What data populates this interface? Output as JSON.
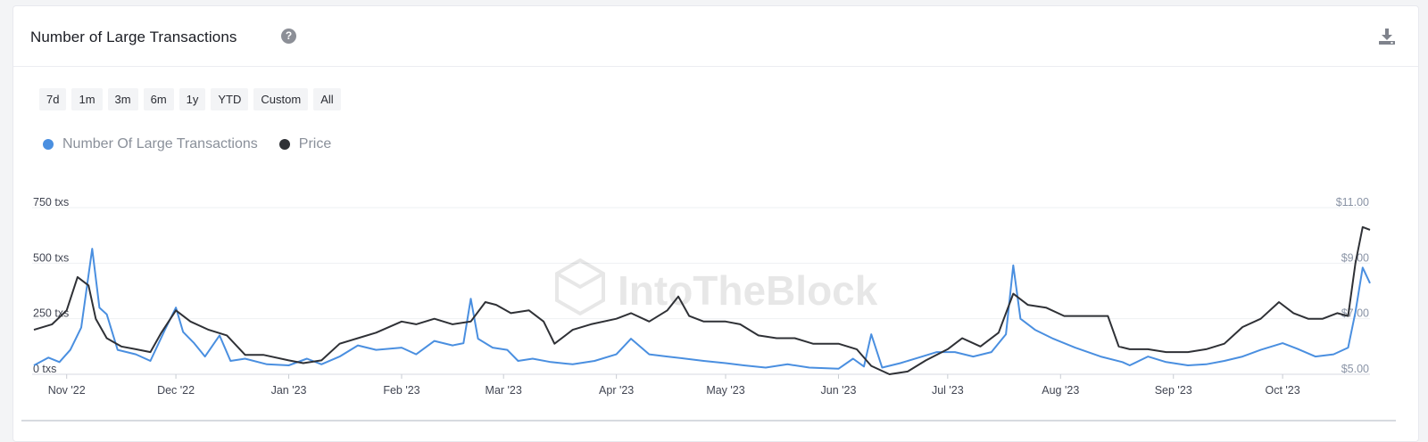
{
  "header": {
    "title": "Number of Large Transactions",
    "help_icon": "question-circle-icon",
    "download_icon": "download-icon"
  },
  "range_buttons": [
    "7d",
    "1m",
    "3m",
    "6m",
    "1y",
    "YTD",
    "Custom",
    "All"
  ],
  "watermark": "IntoTheBlock",
  "colors": {
    "transactions": "#4a8fe0",
    "price": "#2f3136",
    "grid": "#eef0f3",
    "axis_text": "#414552",
    "right_axis_text": "#8a94a6"
  },
  "chart_data": {
    "type": "line",
    "title": "Number of Large Transactions",
    "grid": true,
    "legend_position": "top-left",
    "x_range": [
      "2022-10-23",
      "2023-10-25"
    ],
    "x_ticks": [
      {
        "date": "2022-11-01",
        "label": "Nov '22"
      },
      {
        "date": "2022-12-01",
        "label": "Dec '22"
      },
      {
        "date": "2023-01-01",
        "label": "Jan '23"
      },
      {
        "date": "2023-02-01",
        "label": "Feb '23"
      },
      {
        "date": "2023-03-01",
        "label": "Mar '23"
      },
      {
        "date": "2023-04-01",
        "label": "Apr '23"
      },
      {
        "date": "2023-05-01",
        "label": "May '23"
      },
      {
        "date": "2023-06-01",
        "label": "Jun '23"
      },
      {
        "date": "2023-07-01",
        "label": "Jul '23"
      },
      {
        "date": "2023-08-01",
        "label": "Aug '23"
      },
      {
        "date": "2023-09-01",
        "label": "Sep '23"
      },
      {
        "date": "2023-10-01",
        "label": "Oct '23"
      }
    ],
    "y_left": {
      "range": [
        0,
        750
      ],
      "ticks": [
        0,
        250,
        500,
        750
      ],
      "labels": [
        "0 txs",
        "250 txs",
        "500 txs",
        "750 txs"
      ]
    },
    "y_right": {
      "range": [
        5,
        11
      ],
      "ticks": [
        5,
        7,
        9,
        11
      ],
      "labels": [
        "$5.00",
        "$7.00",
        "$9.00",
        "$11.00"
      ]
    },
    "series": [
      {
        "name": "Number Of Large Transactions",
        "axis": "left",
        "points": [
          [
            "2022-10-23",
            40
          ],
          [
            "2022-10-27",
            75
          ],
          [
            "2022-10-30",
            55
          ],
          [
            "2022-11-02",
            110
          ],
          [
            "2022-11-05",
            210
          ],
          [
            "2022-11-08",
            565
          ],
          [
            "2022-11-10",
            300
          ],
          [
            "2022-11-12",
            270
          ],
          [
            "2022-11-15",
            110
          ],
          [
            "2022-11-20",
            90
          ],
          [
            "2022-11-24",
            60
          ],
          [
            "2022-11-28",
            200
          ],
          [
            "2022-12-01",
            300
          ],
          [
            "2022-12-03",
            190
          ],
          [
            "2022-12-06",
            140
          ],
          [
            "2022-12-09",
            80
          ],
          [
            "2022-12-13",
            175
          ],
          [
            "2022-12-16",
            60
          ],
          [
            "2022-12-20",
            70
          ],
          [
            "2022-12-26",
            45
          ],
          [
            "2023-01-01",
            40
          ],
          [
            "2023-01-06",
            70
          ],
          [
            "2023-01-10",
            45
          ],
          [
            "2023-01-15",
            80
          ],
          [
            "2023-01-20",
            130
          ],
          [
            "2023-01-25",
            110
          ],
          [
            "2023-02-01",
            120
          ],
          [
            "2023-02-05",
            90
          ],
          [
            "2023-02-10",
            150
          ],
          [
            "2023-02-15",
            130
          ],
          [
            "2023-02-18",
            140
          ],
          [
            "2023-02-20",
            340
          ],
          [
            "2023-02-22",
            160
          ],
          [
            "2023-02-26",
            120
          ],
          [
            "2023-03-02",
            110
          ],
          [
            "2023-03-05",
            60
          ],
          [
            "2023-03-09",
            70
          ],
          [
            "2023-03-14",
            55
          ],
          [
            "2023-03-20",
            45
          ],
          [
            "2023-03-26",
            60
          ],
          [
            "2023-04-01",
            90
          ],
          [
            "2023-04-05",
            160
          ],
          [
            "2023-04-10",
            90
          ],
          [
            "2023-04-15",
            80
          ],
          [
            "2023-04-20",
            70
          ],
          [
            "2023-04-25",
            60
          ],
          [
            "2023-05-01",
            50
          ],
          [
            "2023-05-06",
            40
          ],
          [
            "2023-05-12",
            30
          ],
          [
            "2023-05-18",
            45
          ],
          [
            "2023-05-24",
            30
          ],
          [
            "2023-06-01",
            25
          ],
          [
            "2023-06-05",
            70
          ],
          [
            "2023-06-08",
            35
          ],
          [
            "2023-06-10",
            180
          ],
          [
            "2023-06-13",
            30
          ],
          [
            "2023-06-18",
            50
          ],
          [
            "2023-06-23",
            75
          ],
          [
            "2023-06-28",
            100
          ],
          [
            "2023-07-03",
            100
          ],
          [
            "2023-07-08",
            80
          ],
          [
            "2023-07-13",
            100
          ],
          [
            "2023-07-17",
            180
          ],
          [
            "2023-07-19",
            490
          ],
          [
            "2023-07-21",
            250
          ],
          [
            "2023-07-25",
            200
          ],
          [
            "2023-07-30",
            160
          ],
          [
            "2023-08-05",
            120
          ],
          [
            "2023-08-12",
            80
          ],
          [
            "2023-08-18",
            55
          ],
          [
            "2023-08-20",
            40
          ],
          [
            "2023-08-25",
            80
          ],
          [
            "2023-08-30",
            55
          ],
          [
            "2023-09-05",
            40
          ],
          [
            "2023-09-10",
            45
          ],
          [
            "2023-09-15",
            60
          ],
          [
            "2023-09-20",
            80
          ],
          [
            "2023-09-25",
            110
          ],
          [
            "2023-10-01",
            140
          ],
          [
            "2023-10-05",
            115
          ],
          [
            "2023-10-10",
            80
          ],
          [
            "2023-10-15",
            90
          ],
          [
            "2023-10-19",
            120
          ],
          [
            "2023-10-21",
            280
          ],
          [
            "2023-10-23",
            480
          ],
          [
            "2023-10-25",
            410
          ]
        ]
      },
      {
        "name": "Price",
        "axis": "right",
        "points": [
          [
            "2022-10-23",
            6.6
          ],
          [
            "2022-10-28",
            6.8
          ],
          [
            "2022-11-01",
            7.3
          ],
          [
            "2022-11-04",
            8.5
          ],
          [
            "2022-11-07",
            8.2
          ],
          [
            "2022-11-09",
            7.0
          ],
          [
            "2022-11-12",
            6.3
          ],
          [
            "2022-11-16",
            6.0
          ],
          [
            "2022-11-20",
            5.9
          ],
          [
            "2022-11-24",
            5.8
          ],
          [
            "2022-11-27",
            6.5
          ],
          [
            "2022-12-01",
            7.3
          ],
          [
            "2022-12-05",
            6.9
          ],
          [
            "2022-12-10",
            6.6
          ],
          [
            "2022-12-15",
            6.4
          ],
          [
            "2022-12-20",
            5.7
          ],
          [
            "2022-12-25",
            5.7
          ],
          [
            "2023-01-01",
            5.5
          ],
          [
            "2023-01-05",
            5.4
          ],
          [
            "2023-01-10",
            5.5
          ],
          [
            "2023-01-15",
            6.1
          ],
          [
            "2023-01-20",
            6.3
          ],
          [
            "2023-01-25",
            6.5
          ],
          [
            "2023-02-01",
            6.9
          ],
          [
            "2023-02-05",
            6.8
          ],
          [
            "2023-02-10",
            7.0
          ],
          [
            "2023-02-15",
            6.8
          ],
          [
            "2023-02-20",
            6.9
          ],
          [
            "2023-02-24",
            7.6
          ],
          [
            "2023-02-27",
            7.5
          ],
          [
            "2023-03-03",
            7.2
          ],
          [
            "2023-03-08",
            7.3
          ],
          [
            "2023-03-12",
            6.9
          ],
          [
            "2023-03-15",
            6.1
          ],
          [
            "2023-03-20",
            6.6
          ],
          [
            "2023-03-25",
            6.8
          ],
          [
            "2023-04-01",
            7.0
          ],
          [
            "2023-04-05",
            7.2
          ],
          [
            "2023-04-10",
            6.9
          ],
          [
            "2023-04-15",
            7.3
          ],
          [
            "2023-04-18",
            7.8
          ],
          [
            "2023-04-21",
            7.1
          ],
          [
            "2023-04-25",
            6.9
          ],
          [
            "2023-05-01",
            6.9
          ],
          [
            "2023-05-05",
            6.8
          ],
          [
            "2023-05-10",
            6.4
          ],
          [
            "2023-05-15",
            6.3
          ],
          [
            "2023-05-20",
            6.3
          ],
          [
            "2023-05-25",
            6.1
          ],
          [
            "2023-06-01",
            6.1
          ],
          [
            "2023-06-06",
            5.9
          ],
          [
            "2023-06-10",
            5.3
          ],
          [
            "2023-06-15",
            5.0
          ],
          [
            "2023-06-20",
            5.1
          ],
          [
            "2023-06-25",
            5.5
          ],
          [
            "2023-07-01",
            5.9
          ],
          [
            "2023-07-05",
            6.3
          ],
          [
            "2023-07-10",
            6.0
          ],
          [
            "2023-07-15",
            6.5
          ],
          [
            "2023-07-19",
            7.9
          ],
          [
            "2023-07-23",
            7.5
          ],
          [
            "2023-07-28",
            7.4
          ],
          [
            "2023-08-02",
            7.1
          ],
          [
            "2023-08-08",
            7.1
          ],
          [
            "2023-08-14",
            7.1
          ],
          [
            "2023-08-17",
            6.0
          ],
          [
            "2023-08-20",
            5.9
          ],
          [
            "2023-08-25",
            5.9
          ],
          [
            "2023-08-30",
            5.8
          ],
          [
            "2023-09-05",
            5.8
          ],
          [
            "2023-09-10",
            5.9
          ],
          [
            "2023-09-15",
            6.1
          ],
          [
            "2023-09-20",
            6.7
          ],
          [
            "2023-09-25",
            7.0
          ],
          [
            "2023-09-30",
            7.6
          ],
          [
            "2023-10-04",
            7.2
          ],
          [
            "2023-10-08",
            7.0
          ],
          [
            "2023-10-12",
            7.0
          ],
          [
            "2023-10-16",
            7.2
          ],
          [
            "2023-10-19",
            7.1
          ],
          [
            "2023-10-21",
            9.0
          ],
          [
            "2023-10-23",
            10.3
          ],
          [
            "2023-10-25",
            10.2
          ]
        ]
      }
    ]
  }
}
